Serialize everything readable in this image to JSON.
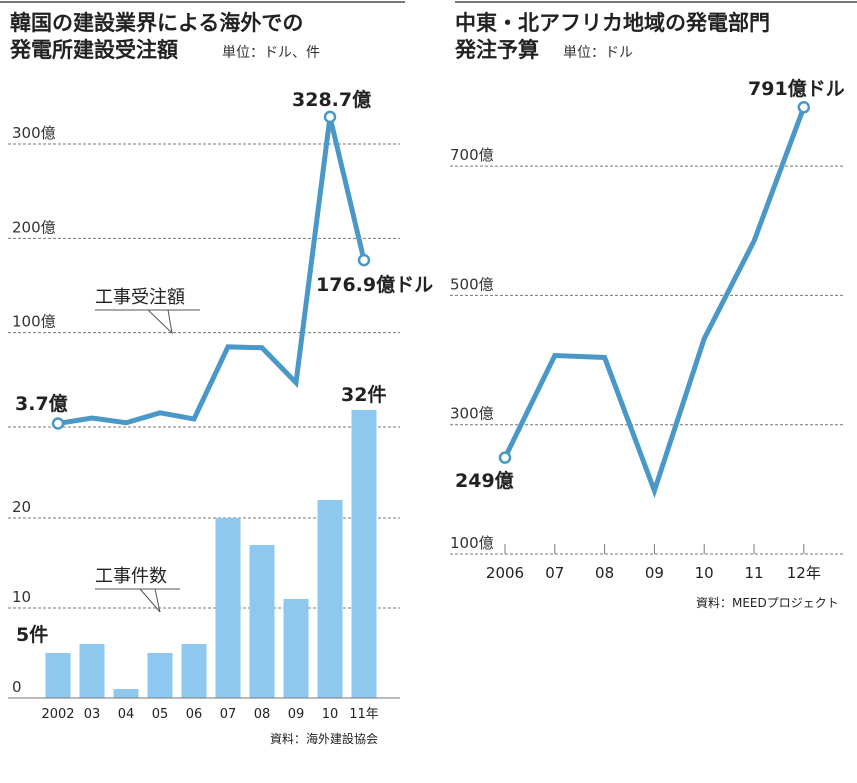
{
  "colors": {
    "line": "#4a98c8",
    "bar": "#8ec8ef",
    "grid": "#777777",
    "text": "#222222"
  },
  "chart_data": [
    {
      "type": "line+bar",
      "title": [
        "韓国の建設業界による海外での",
        "発電所建設受注額"
      ],
      "unit": "単位：ドル、件",
      "categories": [
        "2002",
        "03",
        "04",
        "05",
        "06",
        "07",
        "08",
        "09",
        "10",
        "11年"
      ],
      "line_series": {
        "name": "工事受注額",
        "values": [
          3.7,
          9.5,
          4.5,
          15,
          8.5,
          85,
          84,
          47,
          328.7,
          176.9
        ],
        "yticks": [
          {
            "v": 100,
            "label": "100億"
          },
          {
            "v": 200,
            "label": "200億"
          },
          {
            "v": 300,
            "label": "300億"
          }
        ],
        "ylim": [
          0,
          300
        ]
      },
      "bar_series": {
        "name": "工事件数",
        "values": [
          5,
          6,
          1,
          5,
          6,
          20,
          17,
          11,
          22,
          32
        ],
        "yticks": [
          {
            "v": 0,
            "label": "0"
          },
          {
            "v": 10,
            "label": "10"
          },
          {
            "v": 20,
            "label": "20"
          }
        ],
        "ylim": [
          0,
          30
        ]
      },
      "annotations": {
        "line_first": "3.7億",
        "line_peak": "328.7億",
        "line_last": "176.9億ドル",
        "bar_first": "5件",
        "bar_last": "32件"
      },
      "grid": true,
      "source": "資料：海外建設協会"
    },
    {
      "type": "line",
      "title": [
        "中東・北アフリカ地域の発電部門",
        "発注予算"
      ],
      "unit": "単位：ドル",
      "categories": [
        "2006",
        "07",
        "08",
        "09",
        "10",
        "11",
        "12年"
      ],
      "values": [
        249,
        407,
        404,
        198,
        433,
        584,
        791
      ],
      "yticks": [
        {
          "v": 100,
          "label": "100億"
        },
        {
          "v": 300,
          "label": "300億"
        },
        {
          "v": 500,
          "label": "500億"
        },
        {
          "v": 700,
          "label": "700億"
        }
      ],
      "ylim": [
        100,
        791
      ],
      "annotations": {
        "first": "249億",
        "last": "791億ドル"
      },
      "grid": true,
      "source": "資料：MEEDプロジェクト"
    }
  ]
}
